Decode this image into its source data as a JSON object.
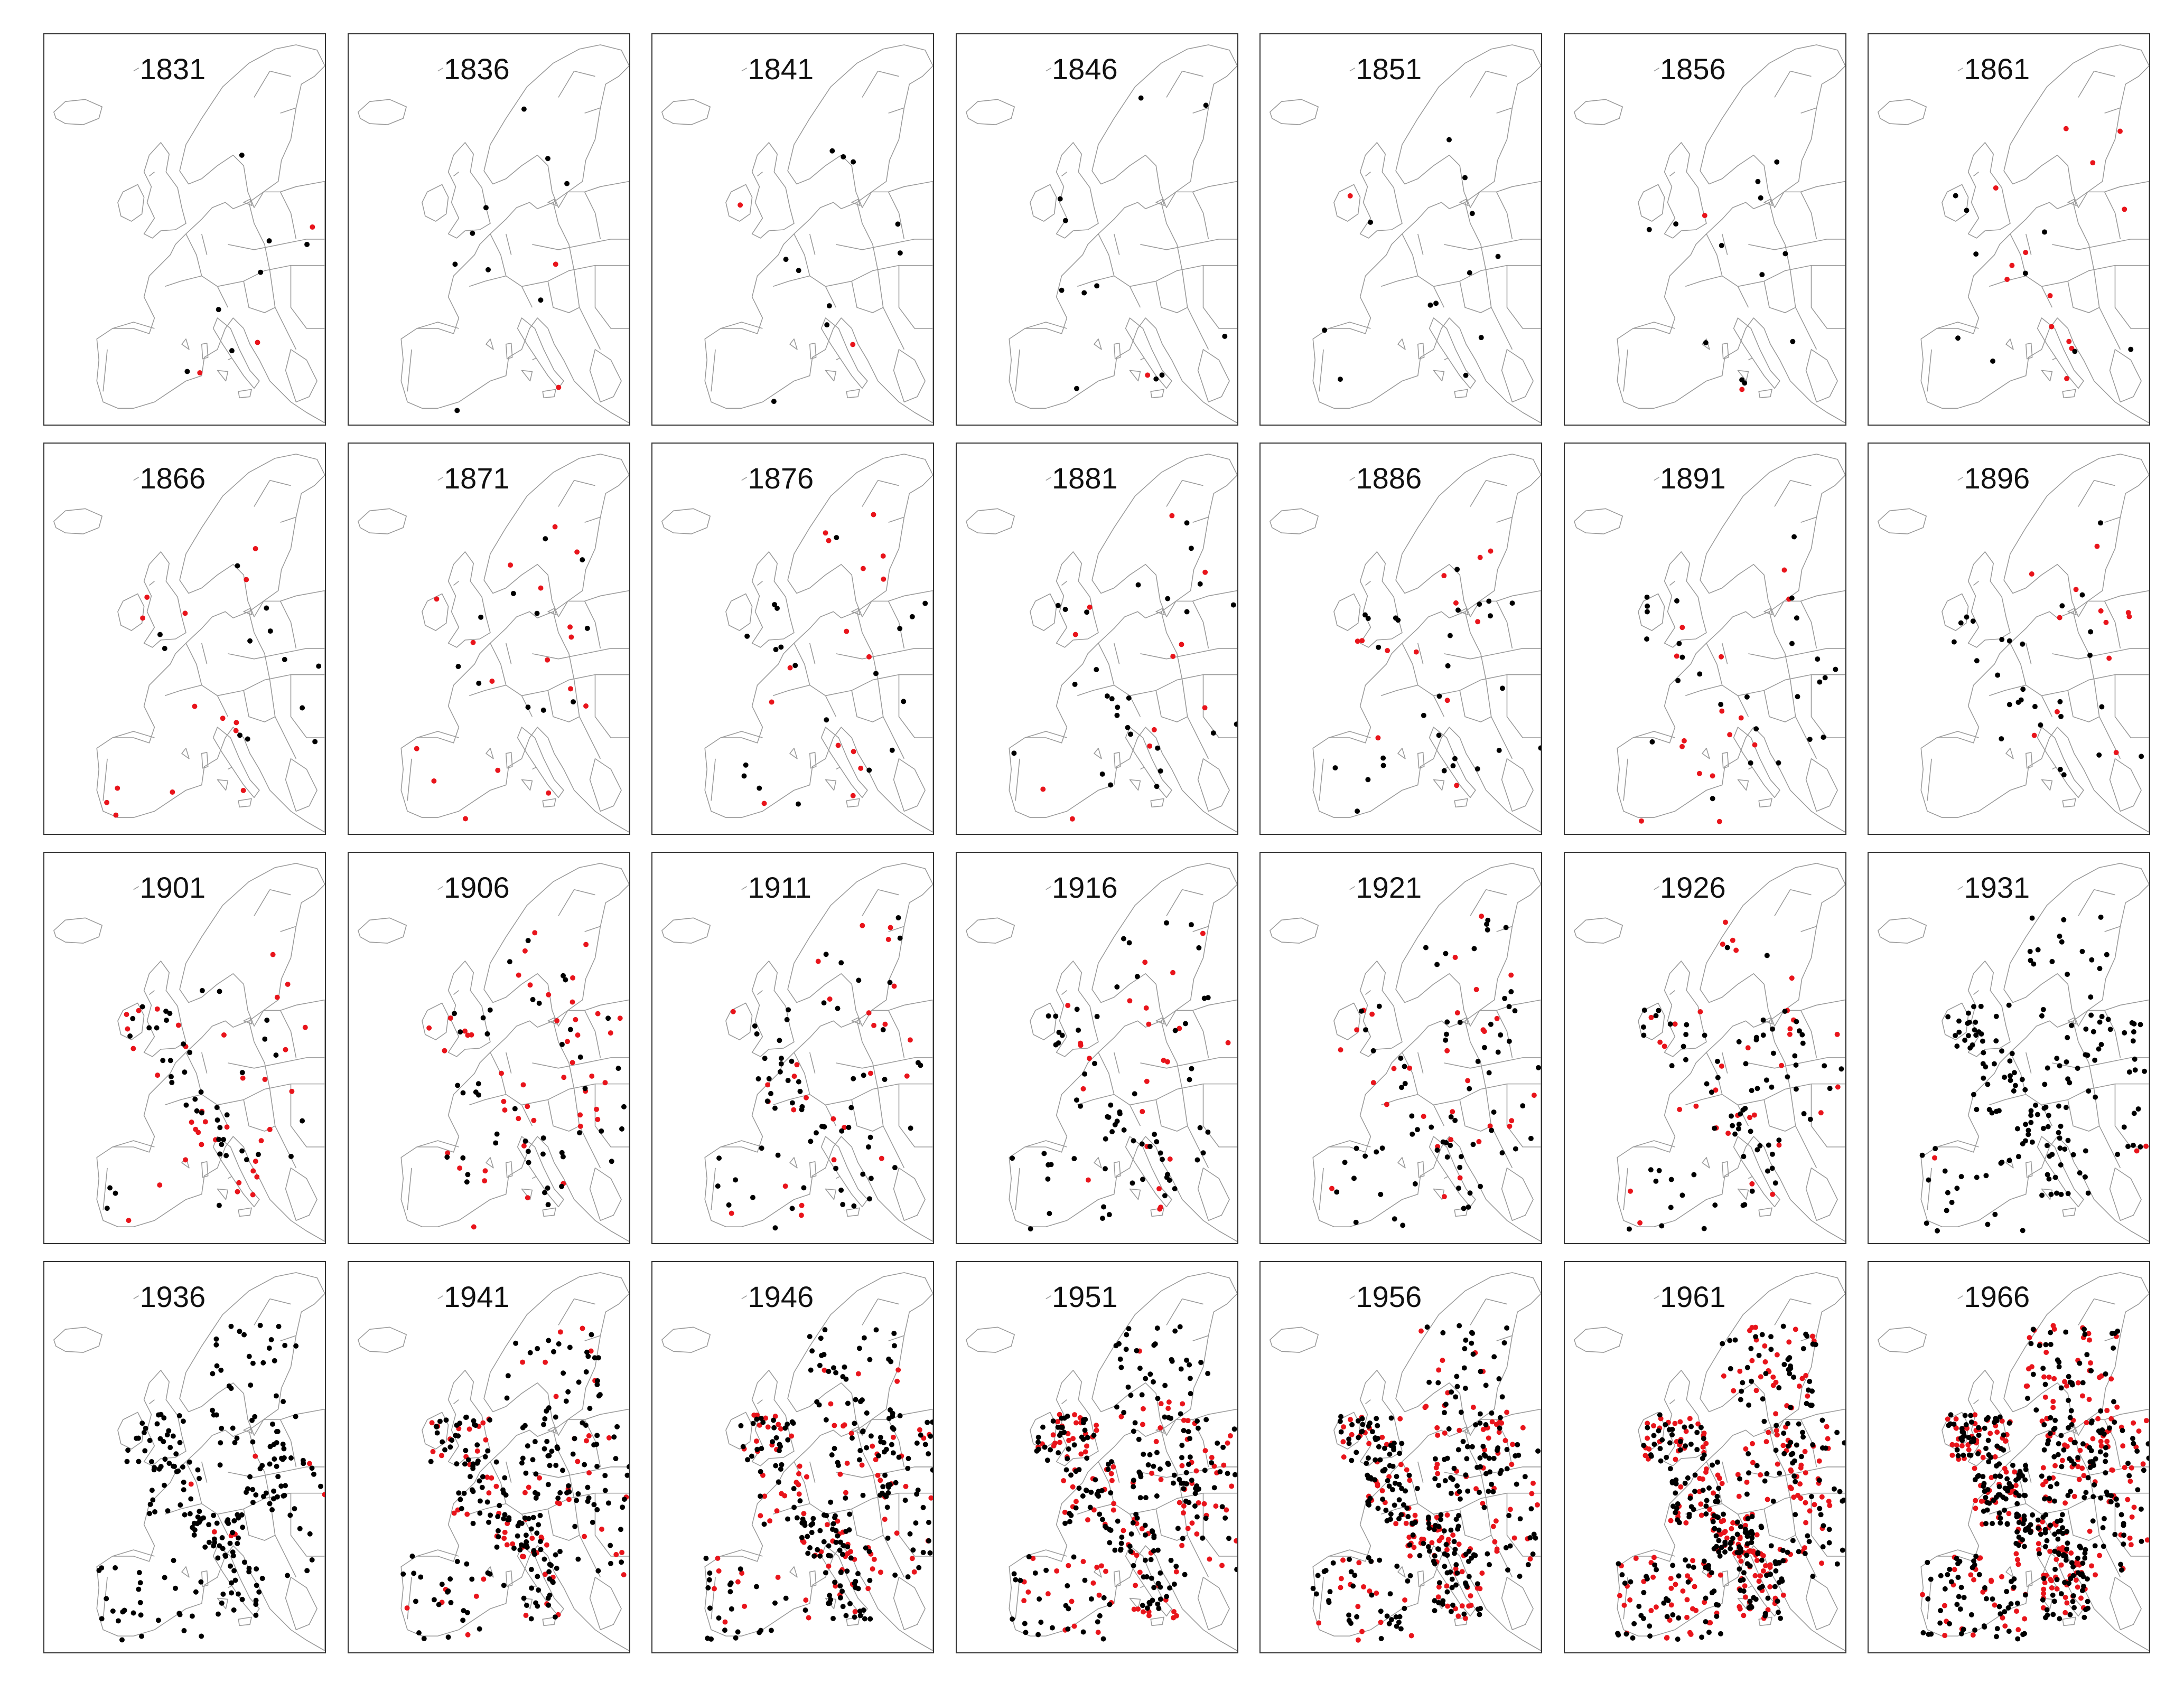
{
  "figure": {
    "years": [
      "1831",
      "1836",
      "1841",
      "1846",
      "1851",
      "1856",
      "1861",
      "1866",
      "1871",
      "1876",
      "1881",
      "1886",
      "1891",
      "1896",
      "1901",
      "1906",
      "1911",
      "1916",
      "1921",
      "1926",
      "1931",
      "1936",
      "1941",
      "1946",
      "1951",
      "1956",
      "1961",
      "1966"
    ]
  },
  "colors": {
    "border_lines": "#9a9a9a",
    "frame": "#333333",
    "highlighted_station": "#e8141b",
    "other_station": "#000000"
  }
}
